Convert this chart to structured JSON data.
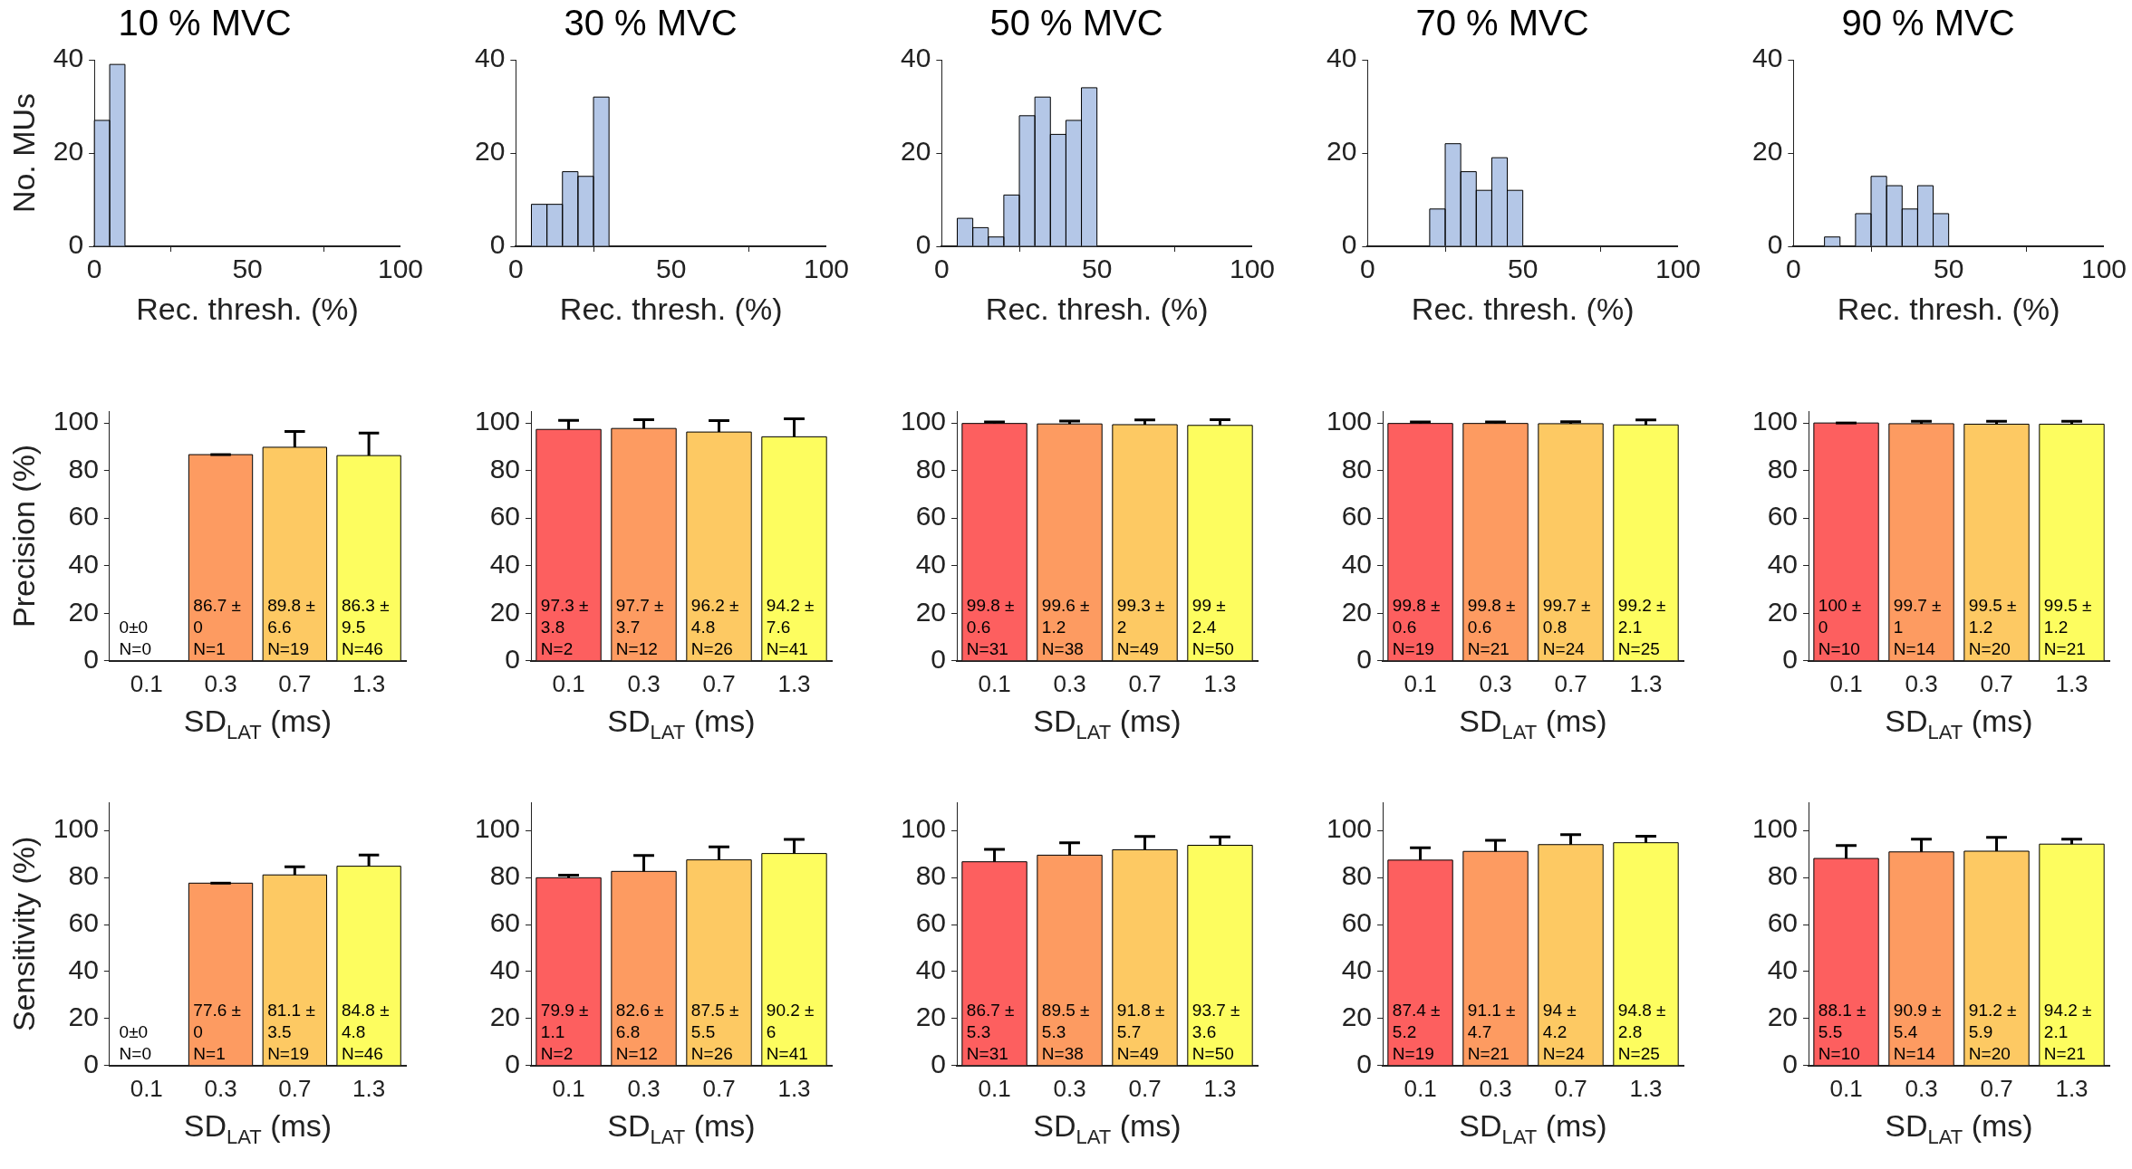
{
  "chart_data": [
    {
      "type": "histogram",
      "title": "10 % MVC",
      "xlabel": "Rec. thresh. (%)",
      "ylabel": "No. MUs",
      "color": "#b4c7e7",
      "bins": [
        0,
        5,
        10
      ],
      "values": [
        27,
        39
      ],
      "xlim": [
        0,
        100
      ],
      "xticks": [
        0,
        50,
        100
      ],
      "ylim": [
        0,
        40
      ],
      "yticks": [
        0,
        20,
        40
      ]
    },
    {
      "type": "histogram",
      "title": "30 % MVC",
      "xlabel": "Rec. thresh. (%)",
      "color": "#b4c7e7",
      "bins": [
        5,
        10,
        15,
        20,
        25,
        30
      ],
      "values": [
        9,
        9,
        16,
        15,
        32
      ],
      "xlim": [
        0,
        100
      ],
      "xticks": [
        0,
        50,
        100
      ],
      "ylim": [
        0,
        40
      ],
      "yticks": [
        0,
        20,
        40
      ]
    },
    {
      "type": "histogram",
      "title": "50 % MVC",
      "xlabel": "Rec. thresh. (%)",
      "color": "#b4c7e7",
      "bins": [
        5,
        10,
        15,
        20,
        25,
        30,
        35,
        40,
        45,
        50
      ],
      "values": [
        6,
        4,
        2,
        11,
        28,
        32,
        24,
        27,
        34
      ],
      "xlim": [
        0,
        100
      ],
      "xticks": [
        0,
        50,
        100
      ],
      "ylim": [
        0,
        40
      ],
      "yticks": [
        0,
        20,
        40
      ]
    },
    {
      "type": "histogram",
      "title": "70 % MVC",
      "xlabel": "Rec. thresh. (%)",
      "color": "#b4c7e7",
      "bins": [
        20,
        25,
        30,
        35,
        40,
        45,
        50
      ],
      "values": [
        8,
        22,
        16,
        12,
        19,
        12
      ],
      "xlim": [
        0,
        100
      ],
      "xticks": [
        0,
        50,
        100
      ],
      "ylim": [
        0,
        40
      ],
      "yticks": [
        0,
        20,
        40
      ]
    },
    {
      "type": "histogram",
      "title": "90 % MVC",
      "xlabel": "Rec. thresh. (%)",
      "color": "#b4c7e7",
      "bins": [
        10,
        15,
        20,
        25,
        30,
        35,
        40,
        45,
        50
      ],
      "values": [
        2,
        0,
        7,
        15,
        13,
        8,
        13,
        7
      ],
      "xlim": [
        0,
        100
      ],
      "xticks": [
        0,
        50,
        100
      ],
      "ylim": [
        0,
        40
      ],
      "yticks": [
        0,
        20,
        40
      ]
    },
    {
      "type": "bar",
      "xlabel": "SD$_{LAT}$ (ms)",
      "ylabel": "Precision (%)",
      "categories": [
        "0.1",
        "0.3",
        "0.7",
        "1.3"
      ],
      "colors": [
        "#fd5f5f",
        "#fd9b61",
        "#fdc963",
        "#fdfd5f"
      ],
      "values": [
        0,
        86.7,
        89.8,
        86.3
      ],
      "errors": [
        null,
        [
          86.7,
          86.7
        ],
        [
          89.8,
          96.4
        ],
        [
          86.3,
          95.8
        ]
      ],
      "value_labels": [
        "0±0\nN=0",
        "86.7 ± 0\nN=1",
        "89.8 ± 6.6\nN=19",
        "86.3 ± 9.5\nN=46"
      ],
      "ylim": [
        0,
        105
      ],
      "yticks": [
        0,
        20,
        40,
        60,
        80,
        100
      ]
    },
    {
      "type": "bar",
      "xlabel": "SD$_{LAT}$ (ms)",
      "categories": [
        "0.1",
        "0.3",
        "0.7",
        "1.3"
      ],
      "colors": [
        "#fd5f5f",
        "#fd9b61",
        "#fdc963",
        "#fdfd5f"
      ],
      "values": [
        97.3,
        97.7,
        96.2,
        94.2
      ],
      "errors": [
        [
          97.3,
          101.1
        ],
        [
          97.7,
          101.4
        ],
        [
          96.2,
          101.0
        ],
        [
          94.2,
          101.8
        ]
      ],
      "value_labels": [
        "97.3 ± 3.8\nN=2",
        "97.7 ± 3.7\nN=12",
        "96.2 ± 4.8\nN=26",
        "94.2 ± 7.6\nN=41"
      ],
      "ylim": [
        0,
        105
      ],
      "yticks": [
        0,
        20,
        40,
        60,
        80,
        100
      ]
    },
    {
      "type": "bar",
      "xlabel": "SD$_{LAT}$ (ms)",
      "categories": [
        "0.1",
        "0.3",
        "0.7",
        "1.3"
      ],
      "colors": [
        "#fd5f5f",
        "#fd9b61",
        "#fdc963",
        "#fdfd5f"
      ],
      "values": [
        99.8,
        99.6,
        99.3,
        99
      ],
      "errors": [
        [
          99.8,
          100.4
        ],
        [
          99.6,
          100.8
        ],
        [
          99.3,
          101.3
        ],
        [
          99,
          101.4
        ]
      ],
      "value_labels": [
        "99.8 ± 0.6\nN=31",
        "99.6 ± 1.2\nN=38",
        "99.3 ± 2\nN=49",
        "99 ± 2.4\nN=50"
      ],
      "ylim": [
        0,
        105
      ],
      "yticks": [
        0,
        20,
        40,
        60,
        80,
        100
      ]
    },
    {
      "type": "bar",
      "xlabel": "SD$_{LAT}$ (ms)",
      "categories": [
        "0.1",
        "0.3",
        "0.7",
        "1.3"
      ],
      "colors": [
        "#fd5f5f",
        "#fd9b61",
        "#fdc963",
        "#fdfd5f"
      ],
      "values": [
        99.8,
        99.8,
        99.7,
        99.2
      ],
      "errors": [
        [
          99.8,
          100.4
        ],
        [
          99.8,
          100.4
        ],
        [
          99.7,
          100.5
        ],
        [
          99.2,
          101.3
        ]
      ],
      "value_labels": [
        "99.8 ± 0.6\nN=19",
        "99.8 ± 0.6\nN=21",
        "99.7 ± 0.8\nN=24",
        "99.2 ± 2.1\nN=25"
      ],
      "ylim": [
        0,
        105
      ],
      "yticks": [
        0,
        20,
        40,
        60,
        80,
        100
      ]
    },
    {
      "type": "bar",
      "xlabel": "SD$_{LAT}$ (ms)",
      "categories": [
        "0.1",
        "0.3",
        "0.7",
        "1.3"
      ],
      "colors": [
        "#fd5f5f",
        "#fd9b61",
        "#fdc963",
        "#fdfd5f"
      ],
      "values": [
        100,
        99.7,
        99.5,
        99.5
      ],
      "errors": [
        [
          100,
          100
        ],
        [
          99.7,
          100.7
        ],
        [
          99.5,
          100.7
        ],
        [
          99.5,
          100.7
        ]
      ],
      "value_labels": [
        "100 ± 0\nN=10",
        "99.7 ± 1\nN=14",
        "99.5 ± 1.2\nN=20",
        "99.5 ± 1.2\nN=21"
      ],
      "ylim": [
        0,
        105
      ],
      "yticks": [
        0,
        20,
        40,
        60,
        80,
        100
      ]
    },
    {
      "type": "bar",
      "xlabel": "SD$_{LAT}$ (ms)",
      "ylabel": "Sensitivity (%)",
      "categories": [
        "0.1",
        "0.3",
        "0.7",
        "1.3"
      ],
      "colors": [
        "#fd5f5f",
        "#fd9b61",
        "#fdc963",
        "#fdfd5f"
      ],
      "values": [
        0,
        77.6,
        81.1,
        84.8
      ],
      "errors": [
        null,
        [
          77.6,
          77.6
        ],
        [
          81.1,
          84.6
        ],
        [
          84.8,
          89.6
        ]
      ],
      "value_labels": [
        "0±0\nN=0",
        "77.6 ± 0\nN=1",
        "81.1 ± 3.5\nN=19",
        "84.8 ± 4.8\nN=46"
      ],
      "ylim": [
        0,
        112
      ],
      "yticks": [
        0,
        20,
        40,
        60,
        80,
        100
      ]
    },
    {
      "type": "bar",
      "xlabel": "SD$_{LAT}$ (ms)",
      "categories": [
        "0.1",
        "0.3",
        "0.7",
        "1.3"
      ],
      "colors": [
        "#fd5f5f",
        "#fd9b61",
        "#fdc963",
        "#fdfd5f"
      ],
      "values": [
        79.9,
        82.6,
        87.5,
        90.2
      ],
      "errors": [
        [
          79.9,
          81.0
        ],
        [
          82.6,
          89.4
        ],
        [
          87.5,
          93.0
        ],
        [
          90.2,
          96.2
        ]
      ],
      "value_labels": [
        "79.9 ± 1.1\nN=2",
        "82.6 ± 6.8\nN=12",
        "87.5 ± 5.5\nN=26",
        "90.2 ± 6\nN=41"
      ],
      "ylim": [
        0,
        112
      ],
      "yticks": [
        0,
        20,
        40,
        60,
        80,
        100
      ]
    },
    {
      "type": "bar",
      "xlabel": "SD$_{LAT}$ (ms)",
      "categories": [
        "0.1",
        "0.3",
        "0.7",
        "1.3"
      ],
      "colors": [
        "#fd5f5f",
        "#fd9b61",
        "#fdc963",
        "#fdfd5f"
      ],
      "values": [
        86.7,
        89.5,
        91.8,
        93.7
      ],
      "errors": [
        [
          86.7,
          92.0
        ],
        [
          89.5,
          94.8
        ],
        [
          91.8,
          97.5
        ],
        [
          93.7,
          97.3
        ]
      ],
      "value_labels": [
        "86.7 ± 5.3\nN=31",
        "89.5 ± 5.3\nN=38",
        "91.8 ± 5.7\nN=49",
        "93.7 ± 3.6\nN=50"
      ],
      "ylim": [
        0,
        112
      ],
      "yticks": [
        0,
        20,
        40,
        60,
        80,
        100
      ]
    },
    {
      "type": "bar",
      "xlabel": "SD$_{LAT}$ (ms)",
      "categories": [
        "0.1",
        "0.3",
        "0.7",
        "1.3"
      ],
      "colors": [
        "#fd5f5f",
        "#fd9b61",
        "#fdc963",
        "#fdfd5f"
      ],
      "values": [
        87.4,
        91.1,
        94,
        94.8
      ],
      "errors": [
        [
          87.4,
          92.6
        ],
        [
          91.1,
          95.8
        ],
        [
          94,
          98.2
        ],
        [
          94.8,
          97.6
        ]
      ],
      "value_labels": [
        "87.4 ± 5.2\nN=19",
        "91.1 ± 4.7\nN=21",
        "94 ± 4.2\nN=24",
        "94.8 ± 2.8\nN=25"
      ],
      "ylim": [
        0,
        112
      ],
      "yticks": [
        0,
        20,
        40,
        60,
        80,
        100
      ]
    },
    {
      "type": "bar",
      "xlabel": "SD$_{LAT}$ (ms)",
      "categories": [
        "0.1",
        "0.3",
        "0.7",
        "1.3"
      ],
      "colors": [
        "#fd5f5f",
        "#fd9b61",
        "#fdc963",
        "#fdfd5f"
      ],
      "values": [
        88.1,
        90.9,
        91.2,
        94.2
      ],
      "errors": [
        [
          88.1,
          93.6
        ],
        [
          90.9,
          96.3
        ],
        [
          91.2,
          97.1
        ],
        [
          94.2,
          96.3
        ]
      ],
      "value_labels": [
        "88.1 ± 5.5\nN=10",
        "90.9 ± 5.4\nN=14",
        "91.2 ± 5.9\nN=20",
        "94.2 ± 2.1\nN=21"
      ],
      "ylim": [
        0,
        112
      ],
      "yticks": [
        0,
        20,
        40,
        60,
        80,
        100
      ]
    }
  ]
}
